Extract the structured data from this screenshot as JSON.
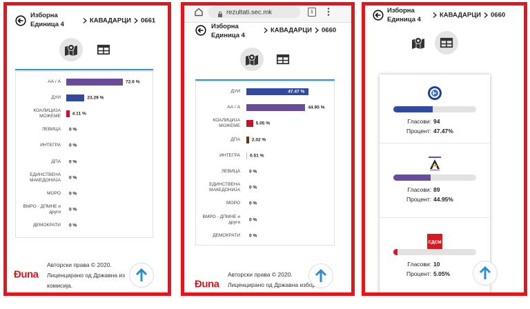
{
  "panels": [
    {
      "header": {
        "title_line1": "Изборна",
        "title_line2": "Единица 4",
        "crumbs": [
          "КАВАДАРЦИ",
          "0661"
        ]
      },
      "bars": [
        {
          "label": "АА / А",
          "value": 72.6,
          "value_label": "72.6 %",
          "color": "#6a4c9c"
        },
        {
          "label": "ДУИ",
          "value": 23.29,
          "value_label": "23.29 %",
          "color": "#2f4a9e"
        },
        {
          "label": "КОАЛИЦИЈА МОЖЕМЕ",
          "value": 4.11,
          "value_label": "4.11 %",
          "color": "#c8102e"
        },
        {
          "label": "ЛЕВИЦА",
          "value": 0,
          "value_label": "0 %"
        },
        {
          "label": "ИНТЕГРА",
          "value": 0,
          "value_label": "0 %"
        },
        {
          "label": "ДПА",
          "value": 0,
          "value_label": "0 %"
        },
        {
          "label": "ЕДИНСТВЕНА МАКЕДОНИЈА",
          "value": 0,
          "value_label": "0 %"
        },
        {
          "label": "МОРО",
          "value": 0,
          "value_label": "0 %"
        },
        {
          "label": "ВМРО - ДПМНЕ и други",
          "value": 0,
          "value_label": "0 %"
        },
        {
          "label": "ДЕМОКРАТИ",
          "value": 0,
          "value_label": "0 %"
        }
      ],
      "footer": {
        "logo": "Ðuna",
        "copyright": "Авторски права © 2020.",
        "license": "Лиценцирано од Државна из",
        "license2": "комисија."
      }
    },
    {
      "browser": {
        "url": "rezultati.sec.mk",
        "tabs": 1
      },
      "header": {
        "title_line1": "Изборна",
        "title_line2": "Единица 4",
        "crumbs": [
          "КАВАДАРЦИ",
          "0660"
        ]
      },
      "bars": [
        {
          "label": "ДУИ",
          "value": 47.47,
          "value_label": "47.47 %",
          "color": "#2f4a9e"
        },
        {
          "label": "АА / А",
          "value": 44.95,
          "value_label": "44.95 %",
          "color": "#6a4c9c"
        },
        {
          "label": "КОАЛИЦИЈА МОЖЕМЕ",
          "value": 5.05,
          "value_label": "5.05 %",
          "color": "#c8102e"
        },
        {
          "label": "ДПА",
          "value": 2.02,
          "value_label": "2.02 %",
          "color": "#5a3a1a"
        },
        {
          "label": "ИНТЕГРА",
          "value": 0.51,
          "value_label": "0.51 %",
          "color": "#e8c800"
        },
        {
          "label": "ЛЕВИЦА",
          "value": 0,
          "value_label": "0 %"
        },
        {
          "label": "ЕДИНСТВЕНА МАКЕДОНИЈА",
          "value": 0,
          "value_label": "0 %"
        },
        {
          "label": "МОРО",
          "value": 0,
          "value_label": "0 %"
        },
        {
          "label": "ВМРО - ДПМНЕ и други",
          "value": 0,
          "value_label": "0 %"
        },
        {
          "label": "ДЕМОКРАТИ",
          "value": 0,
          "value_label": "0 %"
        }
      ],
      "footer": {
        "logo": "Ðuna",
        "copyright": "Авторски права © 2020.",
        "license": "Лиценцирано од Државна избор"
      }
    },
    {
      "header": {
        "title_line1": "Изборна",
        "title_line2": "Единица 4",
        "crumbs": [
          "КАВАДАРЦИ",
          "0660"
        ]
      },
      "votes_label": "Гласови:",
      "percent_label": "Процент:",
      "cards": [
        {
          "votes": 94,
          "percent": 47.47,
          "percent_label": "47.47%",
          "color": "#2f4a9e"
        },
        {
          "votes": 89,
          "percent": 44.95,
          "percent_label": "44.95%",
          "color": "#6a4c9c"
        },
        {
          "logo_text": "СДСМ",
          "votes": 10,
          "percent": 5.05,
          "percent_label": "5.05%",
          "color": "#d71920"
        }
      ]
    }
  ]
}
